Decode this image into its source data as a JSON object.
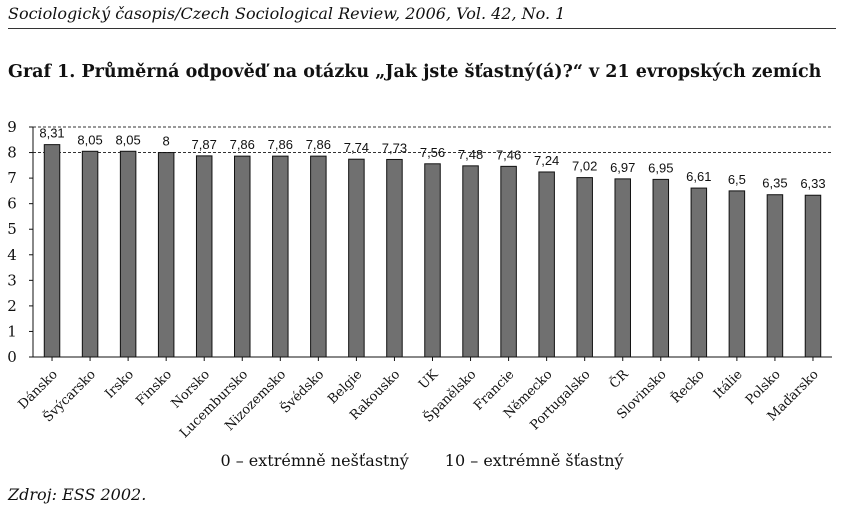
{
  "header": {
    "journal": "Sociologický časopis/Czech Sociological Review, 2006, Vol. 42, No. 1"
  },
  "title": "Graf 1. Průměrná odpověď na otázku „Jak jste šťastný(á)?“ v 21 evropských zemích",
  "legend": {
    "low": "0 – extrémně nešťastný",
    "high": "10 – extrémně šťastný"
  },
  "source": "Zdroj: ESS 2002.",
  "chart_data": {
    "type": "bar",
    "title": "",
    "xlabel": "",
    "ylabel": "",
    "ylim": [
      0,
      9
    ],
    "yticks": [
      "0",
      "1",
      "2",
      "3",
      "4",
      "5",
      "6",
      "7",
      "8",
      "9"
    ],
    "grid": "dashed lines at 8 and 9",
    "bar_color": "#707070",
    "categories": [
      "Dánsko",
      "Švýcarsko",
      "Irsko",
      "Finsko",
      "Norsko",
      "Lucembursko",
      "Nizozemsko",
      "Švédsko",
      "Belgie",
      "Rakousko",
      "UK",
      "Španělsko",
      "Francie",
      "Německo",
      "Portugalsko",
      "ČR",
      "Slovinsko",
      "Řecko",
      "Itálie",
      "Polsko",
      "Maďarsko"
    ],
    "values": [
      8.31,
      8.05,
      8.05,
      8,
      7.87,
      7.86,
      7.86,
      7.86,
      7.74,
      7.73,
      7.56,
      7.48,
      7.46,
      7.24,
      7.02,
      6.97,
      6.95,
      6.61,
      6.5,
      6.35,
      6.33
    ],
    "value_labels": [
      "8,31",
      "8,05",
      "8,05",
      "8",
      "7,87",
      "7,86",
      "7,86",
      "7,86",
      "7,74",
      "7,73",
      "7,56",
      "7,48",
      "7,46",
      "7,24",
      "7,02",
      "6,97",
      "6,95",
      "6,61",
      "6,5",
      "6,35",
      "6,33"
    ]
  }
}
